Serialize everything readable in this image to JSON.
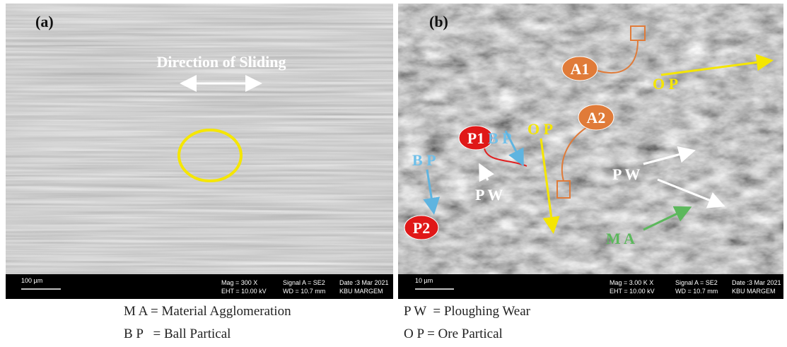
{
  "panels": [
    {
      "label": "(a)",
      "annotation": "Direction of Sliding",
      "scale_bar": "100 µm",
      "info": {
        "mag": "Mag =  300 X",
        "signal": "Signal A = SE2",
        "date": "Date :3 Mar 2021",
        "eht": "EHT = 10.00 kV",
        "wd": "WD = 10.7 mm",
        "lab": "KBU MARGEM"
      }
    },
    {
      "label": "(b)",
      "scale_bar": "10 µm",
      "markers": [
        "A1",
        "O P",
        "A2",
        "P1",
        "B P",
        "O P",
        "B P",
        "P W",
        "P2",
        "P W",
        "M A"
      ],
      "info": {
        "mag": "Mag =  3.00 K X",
        "signal": "Signal A = SE2",
        "date": "Date :3 Mar 2021",
        "eht": "EHT = 10.00 kV",
        "wd": "WD = 10.7 mm",
        "lab": "KBU MARGEM"
      }
    }
  ],
  "legend": [
    "M A = Material Agglomeration",
    "P W  = Ploughing Wear",
    "B P   = Ball Partical",
    "O P = Ore Partical"
  ]
}
